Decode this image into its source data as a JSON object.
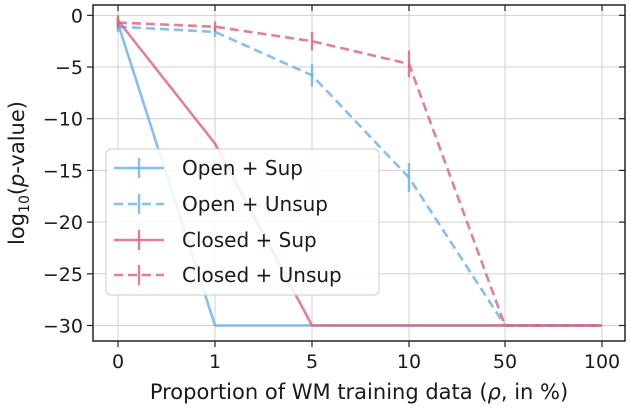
{
  "chart_data": {
    "type": "line",
    "x_categories": [
      "0",
      "1",
      "5",
      "10",
      "50",
      "100"
    ],
    "xlabel_parts": [
      "Proportion of WM training data (",
      "ρ",
      ", in %)"
    ],
    "ylabel_parts": [
      "log",
      "10",
      "(",
      "p",
      "-value)"
    ],
    "ylim": [
      -31.5,
      1
    ],
    "yticks": [
      0,
      -5,
      -10,
      -15,
      -20,
      -25,
      -30
    ],
    "ytick_labels": [
      "0",
      "−5",
      "−10",
      "−15",
      "−20",
      "−25",
      "−30"
    ],
    "grid": true,
    "legend_position": "center-left",
    "series": [
      {
        "name": "Open + Sup",
        "color": "#6aaee8",
        "dashed": false,
        "values": [
          -0.8,
          -30,
          -30,
          -30,
          -30,
          -30
        ],
        "errors": [
          0.6,
          0,
          0,
          0,
          0,
          0
        ]
      },
      {
        "name": "Open + Unsup",
        "color": "#6aaee8",
        "dashed": true,
        "values": [
          -1.1,
          -1.6,
          -5.8,
          -15.7,
          -30,
          -30
        ],
        "errors": [
          0.5,
          0.5,
          1.1,
          1.4,
          0,
          0
        ]
      },
      {
        "name": "Closed + Sup",
        "color": "#d9607f",
        "dashed": false,
        "values": [
          -0.5,
          -12.4,
          -30,
          -30,
          -30,
          -30
        ],
        "errors": [
          0.5,
          0,
          0,
          0,
          0,
          0
        ]
      },
      {
        "name": "Closed + Unsup",
        "color": "#d9607f",
        "dashed": true,
        "values": [
          -0.7,
          -1.1,
          -2.5,
          -4.7,
          -30,
          -30
        ],
        "errors": [
          0.5,
          0.5,
          0.9,
          1.3,
          0,
          0
        ]
      }
    ]
  }
}
